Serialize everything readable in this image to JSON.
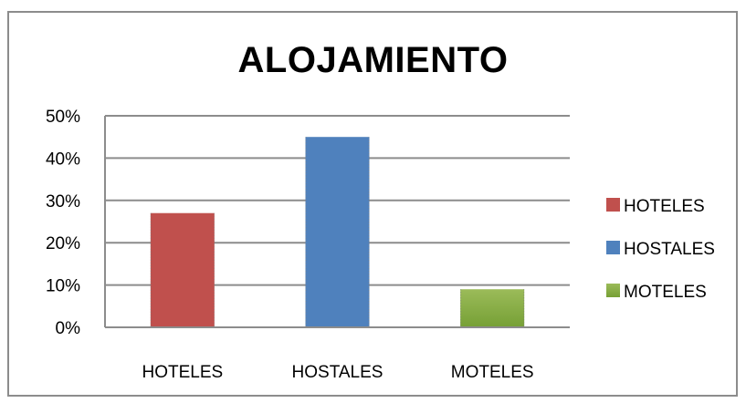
{
  "chart_data": {
    "type": "bar",
    "title": "ALOJAMIENTO",
    "categories": [
      "HOTELES",
      "HOSTALES",
      "MOTELES"
    ],
    "values": [
      0.27,
      0.45,
      0.09
    ],
    "colors": [
      "#c0504d",
      "#4f81bd",
      "#9bbb59"
    ],
    "ylim": [
      0,
      0.5
    ],
    "yticks": [
      0,
      0.1,
      0.2,
      0.3,
      0.4,
      0.5
    ],
    "ytick_labels": [
      "0%",
      "10%",
      "20%",
      "30%",
      "40%",
      "50%"
    ],
    "xlabel": "",
    "ylabel": "",
    "grid": true,
    "legend": {
      "placement": "right",
      "entries": [
        "HOTELES",
        "HOSTALES",
        "MOTELES"
      ]
    }
  }
}
